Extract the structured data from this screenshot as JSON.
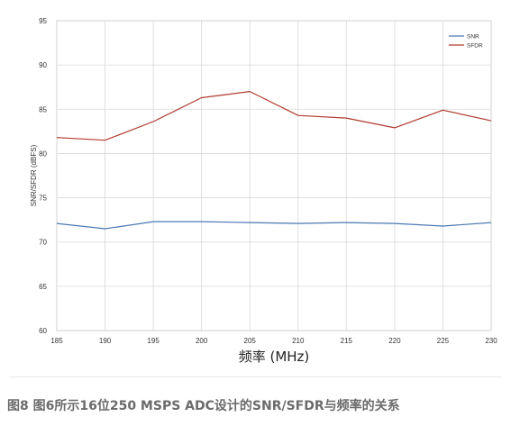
{
  "chart_data": {
    "type": "line",
    "xlabel": "频率 (MHz)",
    "ylabel": "SNR/SFDR (dBFS)",
    "x": [
      185,
      190,
      195,
      200,
      205,
      210,
      215,
      220,
      225,
      230
    ],
    "xticks": [
      "185",
      "190",
      "195",
      "200",
      "205",
      "210",
      "215",
      "220",
      "225",
      "230"
    ],
    "xlim": [
      185,
      230
    ],
    "ylim": [
      60,
      95
    ],
    "yticks": [
      "60",
      "65",
      "70",
      "75",
      "80",
      "85",
      "90",
      "95"
    ],
    "grid": true,
    "legend_position": "top-right",
    "series": [
      {
        "name": "SNR",
        "color": "#4a78b5",
        "values": [
          72.1,
          71.5,
          72.3,
          72.3,
          72.2,
          72.1,
          72.2,
          72.1,
          71.8,
          72.2
        ]
      },
      {
        "name": "SFDR",
        "color": "#b03a2e",
        "values": [
          81.8,
          81.5,
          83.6,
          86.3,
          87.0,
          84.3,
          84.0,
          82.9,
          84.9,
          83.7
        ]
      }
    ]
  },
  "caption": "图8  图6所示16位250 MSPS ADC设计的SNR/SFDR与频率的关系"
}
